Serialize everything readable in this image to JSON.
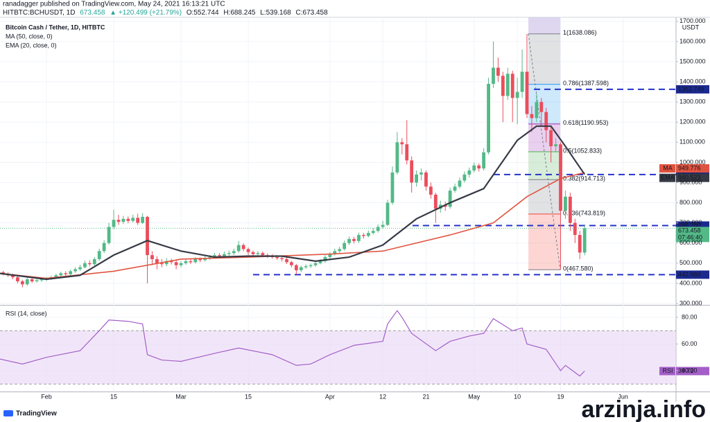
{
  "header": {
    "line1": "ranadagger published on TradingView.com, May 24, 2021 16:13:21 UTC",
    "symbol": "HITBTC:BCHUSDT, 1D",
    "price": "673.458",
    "change": "▲ +120.499 (+21.79%)",
    "o": "O:552.744",
    "h": "H:688.245",
    "l": "L:539.168",
    "c": "C:673.458"
  },
  "footer": {
    "logo": "TradingView",
    "watermark": "arzinja.info"
  },
  "chart_data": [
    {
      "type": "candlestick",
      "title": "Bitcoin Cash / Tether, 1D, HITBTC",
      "unit": "USDT",
      "up_color": "#53b987",
      "down_color": "#eb4d5c",
      "x": [
        "2021-01-22",
        "2021-01-23",
        "2021-01-24",
        "2021-01-25",
        "2021-01-26",
        "2021-01-27",
        "2021-01-28",
        "2021-01-29",
        "2021-01-30",
        "2021-01-31",
        "2021-02-01",
        "2021-02-02",
        "2021-02-03",
        "2021-02-04",
        "2021-02-05",
        "2021-02-06",
        "2021-02-07",
        "2021-02-08",
        "2021-02-09",
        "2021-02-10",
        "2021-02-11",
        "2021-02-12",
        "2021-02-13",
        "2021-02-14",
        "2021-02-15",
        "2021-02-16",
        "2021-02-17",
        "2021-02-18",
        "2021-02-19",
        "2021-02-20",
        "2021-02-21",
        "2021-02-22",
        "2021-02-23",
        "2021-02-24",
        "2021-02-25",
        "2021-02-26",
        "2021-02-27",
        "2021-02-28",
        "2021-03-01",
        "2021-03-02",
        "2021-03-03",
        "2021-03-04",
        "2021-03-05",
        "2021-03-06",
        "2021-03-07",
        "2021-03-08",
        "2021-03-09",
        "2021-03-10",
        "2021-03-11",
        "2021-03-12",
        "2021-03-13",
        "2021-03-14",
        "2021-03-15",
        "2021-03-16",
        "2021-03-17",
        "2021-03-18",
        "2021-03-19",
        "2021-03-20",
        "2021-03-21",
        "2021-03-22",
        "2021-03-23",
        "2021-03-24",
        "2021-03-25",
        "2021-03-26",
        "2021-03-27",
        "2021-03-28",
        "2021-03-29",
        "2021-03-30",
        "2021-03-31",
        "2021-04-01",
        "2021-04-02",
        "2021-04-03",
        "2021-04-04",
        "2021-04-05",
        "2021-04-06",
        "2021-04-07",
        "2021-04-08",
        "2021-04-09",
        "2021-04-10",
        "2021-04-11",
        "2021-04-12",
        "2021-04-13",
        "2021-04-14",
        "2021-04-15",
        "2021-04-16",
        "2021-04-17",
        "2021-04-18",
        "2021-04-19",
        "2021-04-20",
        "2021-04-21",
        "2021-04-22",
        "2021-04-23",
        "2021-04-24",
        "2021-04-25",
        "2021-04-26",
        "2021-04-27",
        "2021-04-28",
        "2021-04-29",
        "2021-04-30",
        "2021-05-01",
        "2021-05-02",
        "2021-05-03",
        "2021-05-04",
        "2021-05-05",
        "2021-05-06",
        "2021-05-07",
        "2021-05-08",
        "2021-05-09",
        "2021-05-10",
        "2021-05-11",
        "2021-05-12",
        "2021-05-13",
        "2021-05-14",
        "2021-05-15",
        "2021-05-16",
        "2021-05-17",
        "2021-05-18",
        "2021-05-19",
        "2021-05-20",
        "2021-05-21",
        "2021-05-22",
        "2021-05-23",
        "2021-05-24"
      ],
      "open": [
        460,
        455,
        448,
        440,
        430,
        410,
        395,
        420,
        410,
        415,
        420,
        425,
        430,
        440,
        450,
        445,
        460,
        470,
        480,
        500,
        495,
        520,
        560,
        600,
        680,
        715,
        705,
        720,
        710,
        725,
        700,
        730,
        540,
        520,
        500,
        495,
        510,
        505,
        490,
        500,
        510,
        505,
        520,
        515,
        525,
        530,
        540,
        535,
        545,
        550,
        560,
        590,
        570,
        555,
        545,
        550,
        540,
        535,
        530,
        525,
        520,
        505,
        490,
        465,
        480,
        485,
        490,
        500,
        510,
        530,
        545,
        560,
        570,
        600,
        620,
        610,
        640,
        635,
        650,
        660,
        680,
        690,
        800,
        950,
        1100,
        1090,
        1010,
        900,
        940,
        950,
        880,
        840,
        770,
        790,
        780,
        860,
        880,
        910,
        940,
        960,
        985,
        970,
        1050,
        1390,
        1470,
        1430,
        1330,
        1440,
        1320,
        1350,
        1450,
        1240,
        1220,
        1300,
        1250,
        1160,
        1080,
        1090,
        760,
        830,
        700,
        640,
        552.744
      ],
      "high": [
        470,
        462,
        455,
        448,
        436,
        418,
        428,
        426,
        422,
        428,
        432,
        438,
        448,
        458,
        460,
        468,
        480,
        492,
        512,
        515,
        530,
        572,
        615,
        700,
        765,
        740,
        735,
        732,
        740,
        745,
        748,
        735,
        560,
        535,
        520,
        525,
        522,
        515,
        510,
        520,
        522,
        530,
        528,
        535,
        540,
        552,
        550,
        558,
        562,
        572,
        610,
        598,
        578,
        562,
        560,
        558,
        548,
        545,
        540,
        535,
        528,
        512,
        496,
        488,
        494,
        498,
        510,
        520,
        540,
        555,
        572,
        582,
        612,
        632,
        630,
        652,
        650,
        662,
        675,
        692,
        710,
        815,
        980,
        1150,
        1120,
        1210,
        1030,
        960,
        970,
        960,
        900,
        850,
        810,
        805,
        875,
        895,
        925,
        955,
        975,
        1000,
        995,
        1070,
        1420,
        1600,
        1520,
        1450,
        1470,
        1455,
        1420,
        1560,
        1638.086,
        1280,
        1340,
        1320,
        1270,
        1180,
        1120,
        1100,
        860,
        850,
        720,
        660,
        688.245
      ],
      "low": [
        445,
        440,
        432,
        420,
        400,
        380,
        388,
        402,
        404,
        408,
        412,
        418,
        424,
        432,
        436,
        440,
        452,
        462,
        474,
        484,
        488,
        512,
        550,
        592,
        670,
        690,
        695,
        698,
        702,
        690,
        695,
        400,
        490,
        470,
        480,
        485,
        494,
        470,
        480,
        492,
        496,
        498,
        505,
        508,
        516,
        522,
        526,
        528,
        536,
        540,
        552,
        560,
        540,
        534,
        536,
        530,
        526,
        522,
        516,
        508,
        496,
        480,
        445,
        456,
        472,
        476,
        482,
        494,
        502,
        522,
        538,
        550,
        562,
        590,
        598,
        600,
        622,
        628,
        642,
        652,
        670,
        684,
        790,
        940,
        1040,
        990,
        850,
        880,
        910,
        860,
        820,
        700,
        750,
        760,
        770,
        850,
        870,
        900,
        925,
        950,
        955,
        960,
        1040,
        1370,
        1400,
        1200,
        1310,
        1200,
        1190,
        1320,
        1220,
        1150,
        1200,
        1180,
        1100,
        1000,
        1050,
        467.58,
        720,
        660,
        600,
        520,
        539.168
      ],
      "close": [
        455,
        448,
        440,
        430,
        410,
        395,
        420,
        410,
        415,
        420,
        425,
        430,
        440,
        450,
        445,
        460,
        470,
        480,
        500,
        495,
        520,
        560,
        600,
        680,
        715,
        705,
        720,
        710,
        725,
        700,
        730,
        540,
        520,
        500,
        495,
        510,
        505,
        490,
        500,
        510,
        505,
        520,
        515,
        525,
        530,
        540,
        535,
        545,
        550,
        560,
        590,
        570,
        555,
        545,
        550,
        540,
        535,
        530,
        525,
        520,
        505,
        490,
        465,
        480,
        485,
        490,
        500,
        510,
        530,
        545,
        560,
        570,
        600,
        620,
        610,
        640,
        635,
        650,
        660,
        680,
        690,
        800,
        950,
        1100,
        1090,
        1010,
        900,
        940,
        950,
        880,
        840,
        770,
        790,
        780,
        860,
        880,
        910,
        940,
        960,
        985,
        970,
        1050,
        1390,
        1470,
        1430,
        1330,
        1440,
        1320,
        1350,
        1450,
        1240,
        1220,
        1300,
        1250,
        1160,
        1080,
        1090,
        760,
        830,
        700,
        640,
        552.744,
        673.458
      ],
      "countdown": "07:46:40",
      "series": [
        {
          "name": "MA (50, close, 0)",
          "tag": "MA",
          "color": "#e0533f",
          "x": [
            "2021-01-22",
            "2021-02-01",
            "2021-02-15",
            "2021-03-01",
            "2021-03-15",
            "2021-04-01",
            "2021-04-12",
            "2021-04-26",
            "2021-05-05",
            "2021-05-12",
            "2021-05-19",
            "2021-05-24"
          ],
          "values": [
            450,
            425,
            460,
            520,
            530,
            545,
            560,
            640,
            700,
            830,
            920,
            949.776
          ]
        },
        {
          "name": "EMA (20, close, 0)",
          "tag": "EMA",
          "color": "#363a45",
          "x": [
            "2021-01-22",
            "2021-02-01",
            "2021-02-08",
            "2021-02-15",
            "2021-02-22",
            "2021-03-01",
            "2021-03-08",
            "2021-03-15",
            "2021-03-22",
            "2021-03-29",
            "2021-04-05",
            "2021-04-12",
            "2021-04-19",
            "2021-04-26",
            "2021-05-03",
            "2021-05-10",
            "2021-05-14",
            "2021-05-17",
            "2021-05-20",
            "2021-05-24"
          ],
          "values": [
            450,
            420,
            440,
            540,
            612,
            560,
            530,
            535,
            535,
            510,
            530,
            590,
            720,
            800,
            870,
            1110,
            1180,
            1180,
            1080,
            940.523
          ]
        }
      ],
      "levels": [
        {
          "value": 1362.749,
          "label": "1362.749"
        },
        {
          "value": 940,
          "label": "940.000"
        },
        {
          "value": 686.75,
          "label": "686.750"
        },
        {
          "value": 442.96,
          "label": "442.960"
        }
      ],
      "level_color": "#2433c9",
      "tag_color": "#1b2a8f",
      "fib": [
        {
          "value": 1638.086,
          "label": "1(1638.086)",
          "color": "#787b86"
        },
        {
          "value": 1387.598,
          "label": "0.786(1387.598)",
          "color": "#2196f3"
        },
        {
          "value": 1190.953,
          "label": "0.618(1190.953)",
          "color": "#9c27b0"
        },
        {
          "value": 1052.833,
          "label": "0.5(1052.833)",
          "color": "#4caf50"
        },
        {
          "value": 914.713,
          "label": "0.382(914.713)",
          "color": "#787b86"
        },
        {
          "value": 743.819,
          "label": "0.236(743.819)",
          "color": "#f44336"
        },
        {
          "value": 467.58,
          "label": "0(467.580)",
          "color": "#787b86"
        }
      ],
      "ylim": [
        293,
        1720
      ],
      "yticks": [
        {
          "value": 300,
          "label": "300.000"
        },
        {
          "value": 400,
          "label": "400.000"
        },
        {
          "value": 500,
          "label": "500.000"
        },
        {
          "value": 600,
          "label": "600.000"
        },
        {
          "value": 700,
          "label": "700.000"
        },
        {
          "value": 800,
          "label": "800.000"
        },
        {
          "value": 900,
          "label": "900.000"
        },
        {
          "value": 1000,
          "label": "1000.000"
        },
        {
          "value": 1100,
          "label": "1100.000"
        },
        {
          "value": 1200,
          "label": "1200.000"
        },
        {
          "value": 1300,
          "label": "1300.000"
        },
        {
          "value": 1400,
          "label": "1400.000"
        },
        {
          "value": 1500,
          "label": "1500.000"
        },
        {
          "value": 1600,
          "label": "1600.000"
        },
        {
          "value": 1700,
          "label": "1700.000"
        }
      ],
      "xticks": [
        {
          "value": "2021-02-01",
          "label": "Feb"
        },
        {
          "value": "2021-02-15",
          "label": "15"
        },
        {
          "value": "2021-03-01",
          "label": "Mar"
        },
        {
          "value": "2021-03-15",
          "label": "15"
        },
        {
          "value": "2021-04-01",
          "label": "Apr"
        },
        {
          "value": "2021-04-12",
          "label": "12"
        },
        {
          "value": "2021-04-21",
          "label": "21"
        },
        {
          "value": "2021-05-01",
          "label": "May"
        },
        {
          "value": "2021-05-10",
          "label": "10"
        },
        {
          "value": "2021-05-19",
          "label": "19"
        },
        {
          "value": "2021-06-01",
          "label": "Jun"
        }
      ],
      "grid": true
    },
    {
      "type": "line",
      "title": "RSI (14, close)",
      "tag": "RSI",
      "color": "#a35fc7",
      "band_color": "#e8d5f5",
      "x": [
        "2021-01-22",
        "2021-01-27",
        "2021-02-01",
        "2021-02-08",
        "2021-02-12",
        "2021-02-14",
        "2021-02-18",
        "2021-02-21",
        "2021-02-22",
        "2021-02-25",
        "2021-03-01",
        "2021-03-08",
        "2021-03-13",
        "2021-03-20",
        "2021-03-25",
        "2021-03-28",
        "2021-04-01",
        "2021-04-06",
        "2021-04-12",
        "2021-04-13",
        "2021-04-15",
        "2021-04-16",
        "2021-04-18",
        "2021-04-23",
        "2021-04-26",
        "2021-04-30",
        "2021-05-03",
        "2021-05-05",
        "2021-05-09",
        "2021-05-11",
        "2021-05-12",
        "2021-05-16",
        "2021-05-19",
        "2021-05-20",
        "2021-05-23",
        "2021-05-24"
      ],
      "values": [
        49,
        45,
        50,
        55,
        70,
        78,
        77,
        75,
        52,
        48,
        47,
        53,
        57,
        52,
        44,
        45,
        52,
        59,
        62,
        75,
        85,
        80,
        68,
        55,
        62,
        66,
        68,
        79,
        70,
        72,
        60,
        56,
        40,
        44,
        36,
        39.72
      ],
      "bands": [
        30,
        70
      ],
      "ylim": [
        24.4,
        88.8
      ],
      "yticks": [
        {
          "value": 40,
          "label": "40.00"
        },
        {
          "value": 60,
          "label": "60.00"
        },
        {
          "value": 80,
          "label": "80.00"
        }
      ]
    }
  ]
}
